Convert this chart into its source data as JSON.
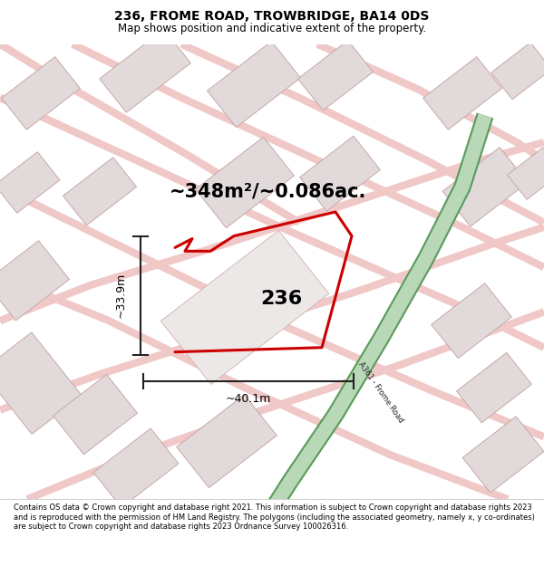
{
  "title": "236, FROME ROAD, TROWBRIDGE, BA14 0DS",
  "subtitle": "Map shows position and indicative extent of the property.",
  "footer": "Contains OS data © Crown copyright and database right 2021. This information is subject to Crown copyright and database rights 2023 and is reproduced with the permission of HM Land Registry. The polygons (including the associated geometry, namely x, y co-ordinates) are subject to Crown copyright and database rights 2023 Ordnance Survey 100026316.",
  "area_label": "~348m²/~0.086ac.",
  "property_number": "236",
  "dim_width": "~40.1m",
  "dim_height": "~33.9m",
  "road_label": "A361 - Frome Road",
  "map_bg": "#f7f3f3",
  "road_green_fill": "#b8d8b8",
  "road_green_border": "#5a9a5a",
  "property_outline_color": "#cc0000",
  "dim_line_color": "#222222",
  "block_fill": "#e2dada",
  "block_stroke": "#c8a8a8",
  "light_road_color": "#f0c8c8",
  "light_road_lw": 6,
  "title_fontsize": 10,
  "subtitle_fontsize": 8.5,
  "area_fontsize": 15,
  "number_fontsize": 16,
  "dim_fontsize": 9
}
